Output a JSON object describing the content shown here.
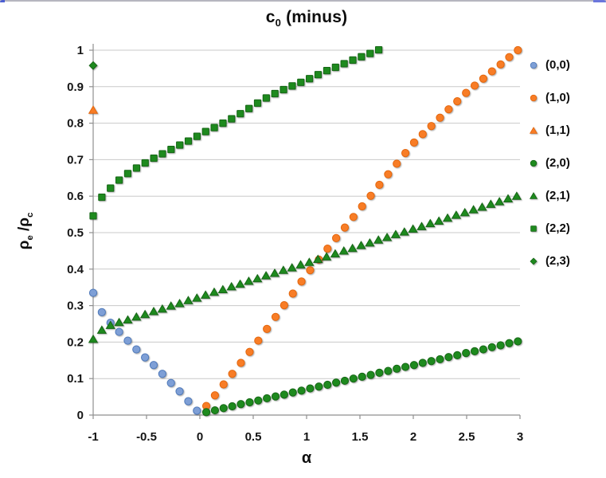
{
  "frame": {
    "top_border_color": "#b6b6bf",
    "corner_left_color": "#4a5ed2",
    "corner_right_color": "#6b76dc"
  },
  "chart_data": {
    "type": "scatter",
    "title": {
      "main": "c",
      "sub": "0",
      "rest": " (minus)"
    },
    "xlabel": "α",
    "ylabel": {
      "p1": "ρ",
      "s1": "e",
      "mid": " /",
      "p2": "ρ",
      "s2": "c"
    },
    "xlim": [
      -1,
      3
    ],
    "ylim": [
      0,
      1
    ],
    "x_ticks": [
      -1,
      -0.5,
      0,
      0.5,
      1,
      1.5,
      2,
      2.5,
      3
    ],
    "x_tick_labels": [
      "-1",
      "-0.5",
      "0",
      "0.5",
      "1",
      "1.5",
      "2",
      "2.5",
      "3"
    ],
    "y_ticks": [
      0,
      0.1,
      0.2,
      0.3,
      0.4,
      0.5,
      0.6,
      0.7,
      0.8,
      0.9,
      1
    ],
    "y_tick_labels": [
      "0",
      "0.1",
      "0.2",
      "0.3",
      "0.4",
      "0.5",
      "0.6",
      "0.7",
      "0.8",
      "0.9",
      "1"
    ],
    "grid": "horizontal",
    "grid_color": "#c9c9c9",
    "axis_color": "#8f8f8f",
    "tick_label_color": "#141414",
    "legend_position": "right",
    "series": [
      {
        "name": "(0,0)",
        "marker": "circle",
        "fill": "#7E9FD6",
        "stroke": "#4E79BA",
        "points": [
          [
            -1.0,
            0.335
          ],
          [
            -0.919,
            0.282
          ],
          [
            -0.838,
            0.253
          ],
          [
            -0.757,
            0.228
          ],
          [
            -0.676,
            0.204
          ],
          [
            -0.595,
            0.18
          ],
          [
            -0.514,
            0.158
          ],
          [
            -0.433,
            0.137
          ],
          [
            -0.352,
            0.113
          ],
          [
            -0.271,
            0.088
          ],
          [
            -0.19,
            0.065
          ],
          [
            -0.109,
            0.038
          ],
          [
            -0.028,
            0.012
          ]
        ]
      },
      {
        "name": "(1,0)",
        "marker": "circle",
        "fill": "#F87D26",
        "stroke": "#E4660C",
        "points": [
          [
            0.06,
            0.025
          ],
          [
            0.141,
            0.054
          ],
          [
            0.222,
            0.084
          ],
          [
            0.303,
            0.113
          ],
          [
            0.384,
            0.143
          ],
          [
            0.466,
            0.173
          ],
          [
            0.547,
            0.204
          ],
          [
            0.628,
            0.236
          ],
          [
            0.709,
            0.269
          ],
          [
            0.79,
            0.301
          ],
          [
            0.871,
            0.333
          ],
          [
            0.952,
            0.366
          ],
          [
            1.033,
            0.397
          ],
          [
            1.115,
            0.426
          ],
          [
            1.196,
            0.456
          ],
          [
            1.277,
            0.485
          ],
          [
            1.358,
            0.514
          ],
          [
            1.439,
            0.543
          ],
          [
            1.52,
            0.572
          ],
          [
            1.601,
            0.601
          ],
          [
            1.682,
            0.631
          ],
          [
            1.764,
            0.66
          ],
          [
            1.845,
            0.689
          ],
          [
            1.926,
            0.718
          ],
          [
            2.007,
            0.747
          ],
          [
            2.088,
            0.77
          ],
          [
            2.169,
            0.792
          ],
          [
            2.25,
            0.815
          ],
          [
            2.331,
            0.838
          ],
          [
            2.412,
            0.86
          ],
          [
            2.494,
            0.883
          ],
          [
            2.575,
            0.903
          ],
          [
            2.656,
            0.922
          ],
          [
            2.737,
            0.942
          ],
          [
            2.818,
            0.961
          ],
          [
            2.899,
            0.981
          ],
          [
            2.98,
            1.0
          ]
        ]
      },
      {
        "name": "(1,1)",
        "marker": "triangle",
        "fill": "#F87D26",
        "stroke": "#E4660C",
        "points": [
          [
            -1.0,
            0.836
          ]
        ]
      },
      {
        "name": "(2,0)",
        "marker": "circle",
        "fill": "#1E8A1E",
        "stroke": "#156615",
        "points": [
          [
            0.06,
            0.008
          ],
          [
            0.141,
            0.013
          ],
          [
            0.222,
            0.019
          ],
          [
            0.303,
            0.024
          ],
          [
            0.384,
            0.03
          ],
          [
            0.466,
            0.035
          ],
          [
            0.547,
            0.04
          ],
          [
            0.628,
            0.046
          ],
          [
            0.709,
            0.051
          ],
          [
            0.79,
            0.056
          ],
          [
            0.871,
            0.062
          ],
          [
            0.952,
            0.067
          ],
          [
            1.033,
            0.073
          ],
          [
            1.115,
            0.078
          ],
          [
            1.196,
            0.083
          ],
          [
            1.277,
            0.089
          ],
          [
            1.358,
            0.094
          ],
          [
            1.439,
            0.1
          ],
          [
            1.52,
            0.105
          ],
          [
            1.601,
            0.11
          ],
          [
            1.682,
            0.116
          ],
          [
            1.764,
            0.121
          ],
          [
            1.845,
            0.127
          ],
          [
            1.926,
            0.132
          ],
          [
            2.007,
            0.137
          ],
          [
            2.088,
            0.143
          ],
          [
            2.169,
            0.148
          ],
          [
            2.25,
            0.153
          ],
          [
            2.331,
            0.159
          ],
          [
            2.412,
            0.164
          ],
          [
            2.494,
            0.17
          ],
          [
            2.575,
            0.175
          ],
          [
            2.656,
            0.18
          ],
          [
            2.737,
            0.186
          ],
          [
            2.818,
            0.191
          ],
          [
            2.899,
            0.197
          ],
          [
            2.98,
            0.202
          ]
        ]
      },
      {
        "name": "(2,1)",
        "marker": "triangle",
        "fill": "#1E8A1E",
        "stroke": "#156615",
        "points": [
          [
            -1.0,
            0.208
          ],
          [
            -0.919,
            0.233
          ],
          [
            -0.838,
            0.246
          ],
          [
            -0.757,
            0.254
          ],
          [
            -0.676,
            0.261
          ],
          [
            -0.595,
            0.269
          ],
          [
            -0.514,
            0.276
          ],
          [
            -0.433,
            0.284
          ],
          [
            -0.352,
            0.291
          ],
          [
            -0.271,
            0.299
          ],
          [
            -0.19,
            0.306
          ],
          [
            -0.109,
            0.314
          ],
          [
            -0.028,
            0.321
          ],
          [
            0.053,
            0.329
          ],
          [
            0.134,
            0.337
          ],
          [
            0.215,
            0.344
          ],
          [
            0.296,
            0.352
          ],
          [
            0.377,
            0.359
          ],
          [
            0.458,
            0.367
          ],
          [
            0.539,
            0.374
          ],
          [
            0.62,
            0.382
          ],
          [
            0.701,
            0.389
          ],
          [
            0.782,
            0.397
          ],
          [
            0.863,
            0.404
          ],
          [
            0.944,
            0.412
          ],
          [
            1.025,
            0.419
          ],
          [
            1.106,
            0.427
          ],
          [
            1.187,
            0.434
          ],
          [
            1.268,
            0.442
          ],
          [
            1.349,
            0.45
          ],
          [
            1.43,
            0.457
          ],
          [
            1.511,
            0.465
          ],
          [
            1.592,
            0.472
          ],
          [
            1.673,
            0.48
          ],
          [
            1.754,
            0.487
          ],
          [
            1.835,
            0.495
          ],
          [
            1.916,
            0.502
          ],
          [
            1.997,
            0.51
          ],
          [
            2.078,
            0.517
          ],
          [
            2.159,
            0.525
          ],
          [
            2.24,
            0.532
          ],
          [
            2.321,
            0.54
          ],
          [
            2.402,
            0.548
          ],
          [
            2.483,
            0.555
          ],
          [
            2.564,
            0.563
          ],
          [
            2.645,
            0.57
          ],
          [
            2.726,
            0.578
          ],
          [
            2.807,
            0.585
          ],
          [
            2.888,
            0.593
          ],
          [
            2.969,
            0.6
          ]
        ]
      },
      {
        "name": "(2,2)",
        "marker": "square",
        "fill": "#1E8A1E",
        "stroke": "#156615",
        "points": [
          [
            -1.0,
            0.546
          ],
          [
            -0.919,
            0.597
          ],
          [
            -0.838,
            0.622
          ],
          [
            -0.757,
            0.644
          ],
          [
            -0.676,
            0.662
          ],
          [
            -0.594,
            0.677
          ],
          [
            -0.513,
            0.691
          ],
          [
            -0.432,
            0.704
          ],
          [
            -0.351,
            0.716
          ],
          [
            -0.27,
            0.728
          ],
          [
            -0.189,
            0.74
          ],
          [
            -0.108,
            0.751
          ],
          [
            -0.027,
            0.764
          ],
          [
            0.054,
            0.777
          ],
          [
            0.135,
            0.788
          ],
          [
            0.216,
            0.8
          ],
          [
            0.297,
            0.812
          ],
          [
            0.379,
            0.826
          ],
          [
            0.46,
            0.84
          ],
          [
            0.541,
            0.855
          ],
          [
            0.622,
            0.869
          ],
          [
            0.703,
            0.881
          ],
          [
            0.784,
            0.892
          ],
          [
            0.865,
            0.902
          ],
          [
            0.946,
            0.912
          ],
          [
            1.027,
            0.922
          ],
          [
            1.108,
            0.933
          ],
          [
            1.19,
            0.944
          ],
          [
            1.271,
            0.953
          ],
          [
            1.352,
            0.963
          ],
          [
            1.433,
            0.973
          ],
          [
            1.514,
            0.982
          ],
          [
            1.595,
            0.991
          ],
          [
            1.676,
            1.001
          ]
        ]
      },
      {
        "name": "(2,3)",
        "marker": "diamond",
        "fill": "#1E8A1E",
        "stroke": "#156615",
        "points": [
          [
            -1.0,
            0.958
          ]
        ]
      }
    ]
  }
}
